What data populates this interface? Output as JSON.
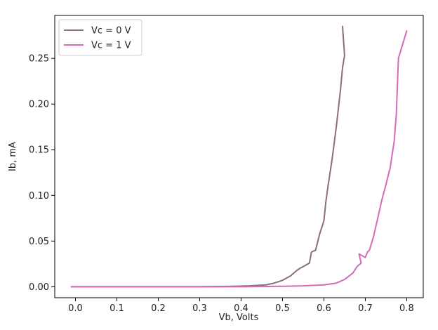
{
  "chart_data": {
    "type": "line",
    "title": "",
    "xlabel": "Vb, Volts",
    "ylabel": "Ib, mA",
    "xlim": [
      -0.05,
      0.84
    ],
    "ylim": [
      -0.012,
      0.297
    ],
    "x_ticks": [
      "0.0",
      "0.1",
      "0.2",
      "0.3",
      "0.4",
      "0.5",
      "0.6",
      "0.7",
      "0.8"
    ],
    "y_ticks": [
      "0.00",
      "0.05",
      "0.10",
      "0.15",
      "0.20",
      "0.25"
    ],
    "x_tick_values": [
      0.0,
      0.1,
      0.2,
      0.3,
      0.4,
      0.5,
      0.6,
      0.7,
      0.8
    ],
    "y_tick_values": [
      0.0,
      0.05,
      0.1,
      0.15,
      0.2,
      0.25
    ],
    "grid": false,
    "legend_position": "top-left",
    "series": [
      {
        "name": "Vc = 0 V",
        "color": "#8c6d7a",
        "x": [
          -0.01,
          0.1,
          0.2,
          0.3,
          0.38,
          0.42,
          0.46,
          0.48,
          0.5,
          0.52,
          0.535,
          0.545,
          0.55,
          0.565,
          0.57,
          0.58,
          0.59,
          0.6,
          0.605,
          0.61,
          0.62,
          0.63,
          0.64,
          0.645,
          0.65,
          0.645
        ],
        "y": [
          0.0,
          0.0,
          0.0,
          0.0,
          0.0005,
          0.001,
          0.002,
          0.004,
          0.007,
          0.012,
          0.018,
          0.021,
          0.022,
          0.026,
          0.038,
          0.04,
          0.058,
          0.072,
          0.094,
          0.11,
          0.14,
          0.175,
          0.215,
          0.24,
          0.253,
          0.285
        ]
      },
      {
        "name": "Vc = 1 V",
        "color": "#d46bb6",
        "x": [
          -0.01,
          0.1,
          0.2,
          0.3,
          0.4,
          0.5,
          0.55,
          0.6,
          0.63,
          0.65,
          0.67,
          0.68,
          0.69,
          0.685,
          0.7,
          0.705,
          0.71,
          0.72,
          0.73,
          0.74,
          0.75,
          0.76,
          0.77,
          0.775,
          0.78,
          0.79,
          0.8
        ],
        "y": [
          0.0,
          0.0,
          0.0,
          0.0,
          0.0,
          0.0005,
          0.001,
          0.002,
          0.004,
          0.008,
          0.015,
          0.022,
          0.026,
          0.036,
          0.032,
          0.038,
          0.04,
          0.055,
          0.075,
          0.095,
          0.112,
          0.13,
          0.16,
          0.19,
          0.25,
          0.265,
          0.28
        ]
      }
    ]
  }
}
